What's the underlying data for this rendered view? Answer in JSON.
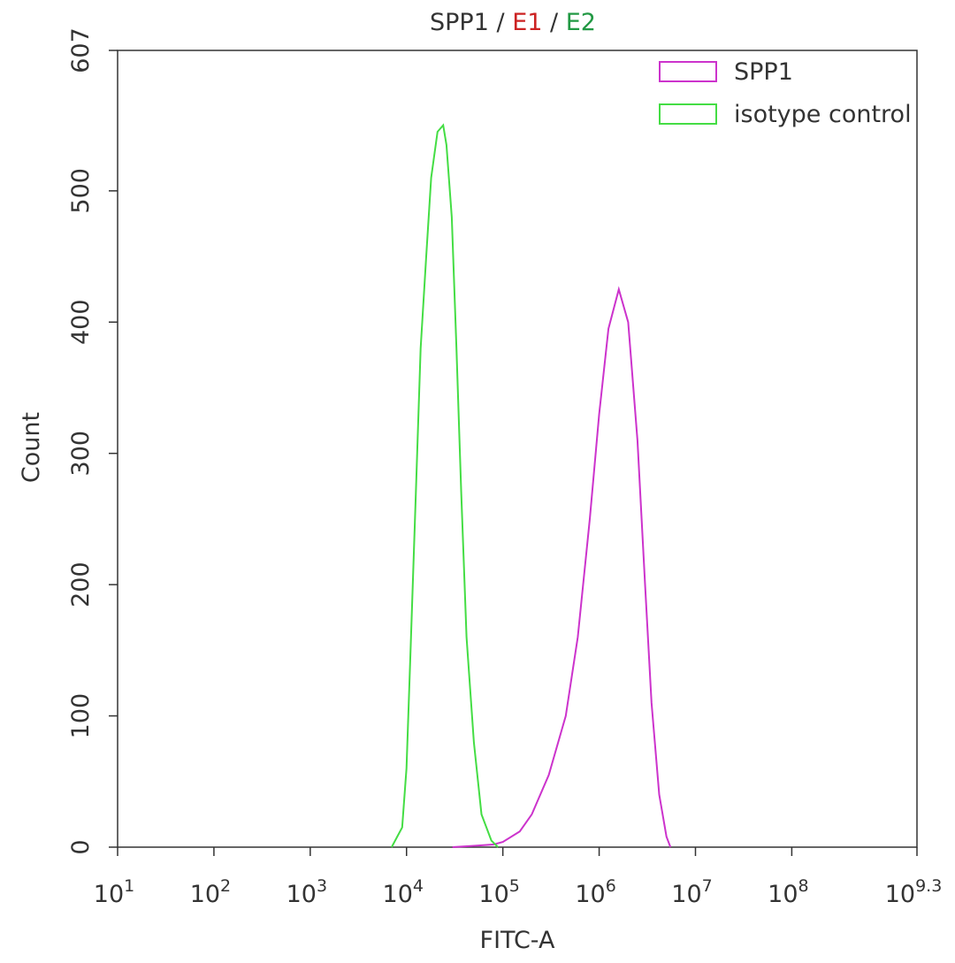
{
  "chart_data": {
    "type": "line",
    "title_parts": [
      {
        "text": "SPP1",
        "color": "#333333"
      },
      {
        "text": "/",
        "color": "#333333"
      },
      {
        "text": "E1",
        "color": "#cc2222"
      },
      {
        "text": "/",
        "color": "#333333"
      },
      {
        "text": "E2",
        "color": "#229944"
      }
    ],
    "x_label": "FITC-A",
    "y_label": "Count",
    "xscale": "log",
    "xlim": [
      10,
      1995262315
    ],
    "ylim": [
      0,
      607
    ],
    "xticks": [
      {
        "value": 10,
        "label": "10",
        "sup": "1"
      },
      {
        "value": 100,
        "label": "10",
        "sup": "2"
      },
      {
        "value": 1000,
        "label": "10",
        "sup": "3"
      },
      {
        "value": 10000,
        "label": "10",
        "sup": "4"
      },
      {
        "value": 100000,
        "label": "10",
        "sup": "5"
      },
      {
        "value": 1000000,
        "label": "10",
        "sup": "6"
      },
      {
        "value": 10000000,
        "label": "10",
        "sup": "7"
      },
      {
        "value": 100000000,
        "label": "10",
        "sup": "8"
      },
      {
        "value": 1995262315,
        "label": "10",
        "sup": "9.3"
      }
    ],
    "yticks": [
      0,
      100,
      200,
      300,
      400,
      500,
      607
    ],
    "legend": "upper right",
    "series": [
      {
        "name": "SPP1",
        "color": "#cc33cc",
        "x": [
          30000,
          50000,
          80000,
          100000,
          150000,
          200000,
          300000,
          450000,
          600000,
          800000,
          1000000,
          1250000,
          1600000,
          2000000,
          2500000,
          3000000,
          3500000,
          4200000,
          5000000,
          5500000
        ],
        "values": [
          0,
          1,
          2,
          4,
          12,
          25,
          55,
          100,
          160,
          250,
          330,
          395,
          425,
          400,
          310,
          200,
          110,
          40,
          8,
          0
        ]
      },
      {
        "name": "isotype control",
        "color": "#44dd44",
        "x": [
          7000,
          9000,
          10000,
          11000,
          12500,
          14000,
          16000,
          18000,
          21000,
          24000,
          26000,
          29500,
          33000,
          37000,
          42000,
          50000,
          60000,
          76000,
          89000
        ],
        "values": [
          0,
          15,
          60,
          150,
          270,
          380,
          450,
          510,
          545,
          550,
          535,
          480,
          380,
          270,
          160,
          80,
          25,
          5,
          0
        ]
      }
    ]
  }
}
